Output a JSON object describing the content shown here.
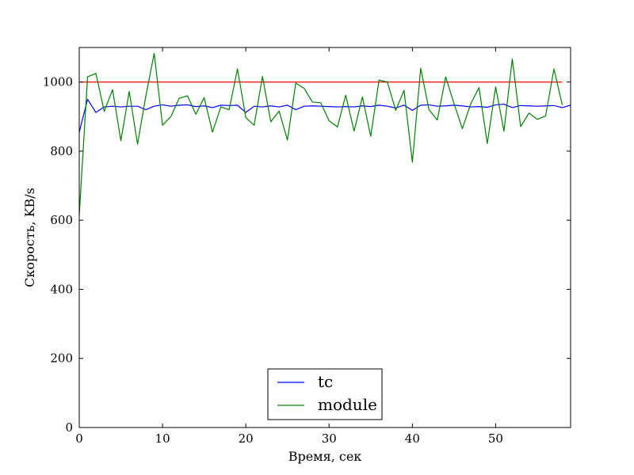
{
  "chart_data": {
    "type": "line",
    "title": "",
    "xlabel": "Время, сек",
    "ylabel": "Скорость, KB/s",
    "xlim": [
      0,
      59
    ],
    "ylim": [
      0,
      1100
    ],
    "x_ticks": [
      0,
      10,
      20,
      30,
      40,
      50
    ],
    "y_ticks": [
      0,
      200,
      400,
      600,
      800,
      1000
    ],
    "grid": false,
    "legend_position": "bottom-center",
    "reference_line": {
      "y": 1000,
      "x_range": [
        0,
        58
      ],
      "color": "#ff0000"
    },
    "x": [
      0,
      1,
      2,
      3,
      4,
      5,
      6,
      7,
      8,
      9,
      10,
      11,
      12,
      13,
      14,
      15,
      16,
      17,
      18,
      19,
      20,
      21,
      22,
      23,
      24,
      25,
      26,
      27,
      28,
      29,
      30,
      31,
      32,
      33,
      34,
      35,
      36,
      37,
      38,
      39,
      40,
      41,
      42,
      43,
      44,
      45,
      46,
      47,
      48,
      49,
      50,
      51,
      52,
      53,
      54,
      55,
      56,
      57,
      58,
      59
    ],
    "series": [
      {
        "name": "tc",
        "color": "#0000ff",
        "values": [
          855,
          950,
          912,
          928,
          930,
          928,
          930,
          930,
          920,
          930,
          934,
          930,
          933,
          934,
          929,
          931,
          926,
          933,
          932,
          933,
          912,
          930,
          928,
          931,
          928,
          933,
          920,
          930,
          931,
          930,
          929,
          928,
          929,
          928,
          931,
          929,
          933,
          930,
          925,
          933,
          918,
          933,
          934,
          930,
          931,
          933,
          931,
          928,
          929,
          927,
          934,
          936,
          926,
          932,
          931,
          930,
          931,
          932,
          926,
          933
        ]
      },
      {
        "name": "module",
        "color": "#008000",
        "values": [
          615,
          1015,
          1025,
          915,
          978,
          830,
          973,
          820,
          960,
          1083,
          875,
          900,
          953,
          960,
          907,
          955,
          855,
          928,
          920,
          1038,
          897,
          875,
          1016,
          885,
          916,
          832,
          997,
          982,
          942,
          940,
          888,
          870,
          962,
          858,
          957,
          843,
          1006,
          1000,
          918,
          976,
          768,
          1040,
          920,
          890,
          1015,
          938,
          865,
          936,
          984,
          822,
          986,
          858,
          1067,
          871,
          910,
          892,
          902,
          1038,
          934,
          null
        ]
      }
    ]
  }
}
